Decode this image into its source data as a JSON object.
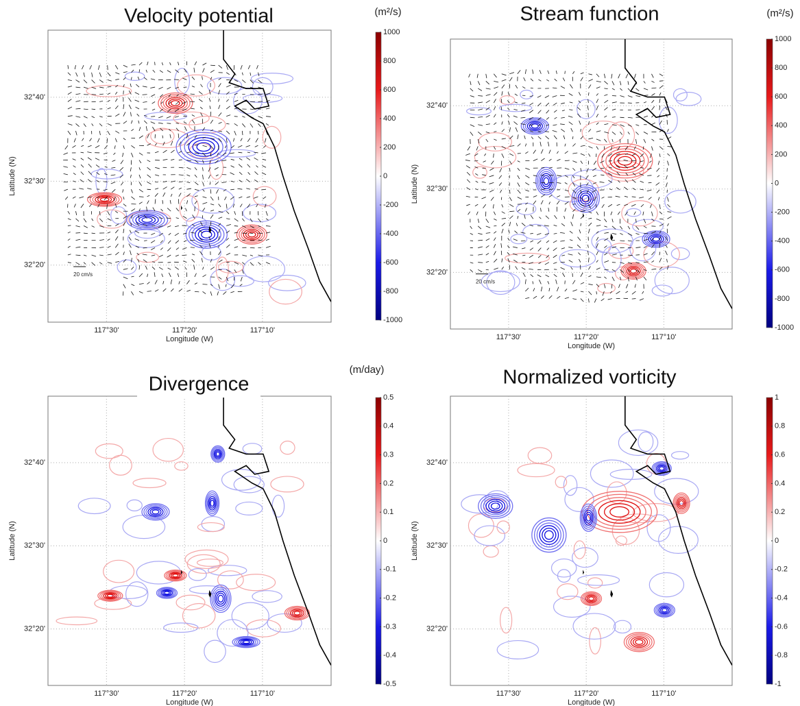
{
  "panels": [
    {
      "title": "Velocity potential",
      "units": "(m²/s)",
      "xlabel": "Longitude (W)",
      "ylabel": "Latitude (N)",
      "scale_label": "20 cm/s",
      "xlim": [
        117.625,
        117.02
      ],
      "ylim": [
        32.22,
        32.8
      ],
      "xticks": [
        {
          "value": 117.5,
          "label": "117°30'"
        },
        {
          "value": 117.3333,
          "label": "117°20'"
        },
        {
          "value": 117.1667,
          "label": "117°10'"
        }
      ],
      "yticks": [
        {
          "value": 32.6667,
          "label": "32°40'"
        },
        {
          "value": 32.5,
          "label": "32°30'"
        },
        {
          "value": 32.3333,
          "label": "32°20'"
        }
      ],
      "clim": [
        -1000,
        1000
      ],
      "cticks": [
        1000,
        800,
        600,
        400,
        200,
        0,
        -200,
        -400,
        -600,
        -800,
        -1000
      ]
    },
    {
      "title": "Stream function",
      "units": "(m²/s)",
      "xlabel": "Longitude (W)",
      "ylabel": "Latitude (N)",
      "scale_label": "20 cm/s",
      "xlim": [
        117.625,
        117.02
      ],
      "ylim": [
        32.22,
        32.8
      ],
      "xticks": [
        {
          "value": 117.5,
          "label": "117°30'"
        },
        {
          "value": 117.3333,
          "label": "117°20'"
        },
        {
          "value": 117.1667,
          "label": "117°10'"
        }
      ],
      "yticks": [
        {
          "value": 32.6667,
          "label": "32°40'"
        },
        {
          "value": 32.5,
          "label": "32°30'"
        },
        {
          "value": 32.3333,
          "label": "32°20'"
        }
      ],
      "clim": [
        -1000,
        1000
      ],
      "cticks": [
        1000,
        800,
        600,
        400,
        200,
        0,
        -200,
        -400,
        -600,
        -800,
        -1000
      ]
    },
    {
      "title": "Divergence",
      "units": "(m/day)",
      "xlabel": "Longitude (W)",
      "ylabel": "Latitude (N)",
      "xlim": [
        117.625,
        117.02
      ],
      "ylim": [
        32.22,
        32.8
      ],
      "xticks": [
        {
          "value": 117.5,
          "label": "117°30'"
        },
        {
          "value": 117.3333,
          "label": "117°20'"
        },
        {
          "value": 117.1667,
          "label": "117°10'"
        }
      ],
      "yticks": [
        {
          "value": 32.6667,
          "label": "32°40'"
        },
        {
          "value": 32.5,
          "label": "32°30'"
        },
        {
          "value": 32.3333,
          "label": "32°20'"
        }
      ],
      "clim": [
        -0.5,
        0.5
      ],
      "cticks": [
        0.5,
        0.4,
        0.3,
        0.2,
        0.1,
        0,
        -0.1,
        -0.2,
        -0.3,
        -0.4,
        -0.5
      ]
    },
    {
      "title": "Normalized vorticity",
      "xlabel": "Longitude (W)",
      "ylabel": "Latitude (N)",
      "xlim": [
        117.625,
        117.02
      ],
      "ylim": [
        32.22,
        32.8
      ],
      "xticks": [
        {
          "value": 117.5,
          "label": "117°30'"
        },
        {
          "value": 117.3333,
          "label": "117°20'"
        },
        {
          "value": 117.1667,
          "label": "117°10'"
        }
      ],
      "yticks": [
        {
          "value": 32.6667,
          "label": "32°40'"
        },
        {
          "value": 32.5,
          "label": "32°30'"
        },
        {
          "value": 32.3333,
          "label": "32°20'"
        }
      ],
      "clim": [
        -1,
        1
      ],
      "cticks": [
        1,
        0.8,
        0.6,
        0.4,
        0.2,
        0,
        -0.2,
        -0.4,
        -0.6,
        -0.8,
        -1
      ]
    }
  ]
}
